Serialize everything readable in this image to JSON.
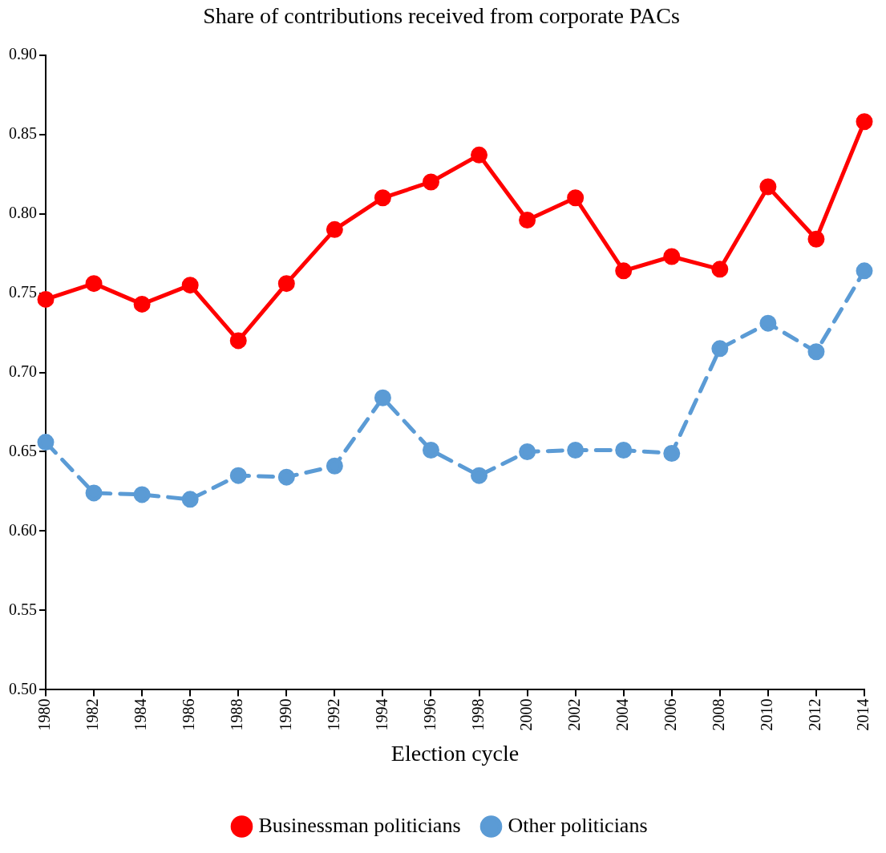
{
  "chart_data": {
    "type": "line",
    "title": "Share of contributions received from corporate PACs",
    "xlabel": "Election cycle",
    "categories": [
      "1980",
      "1982",
      "1984",
      "1986",
      "1988",
      "1990",
      "1992",
      "1994",
      "1996",
      "1998",
      "2000",
      "2002",
      "2004",
      "2006",
      "2008",
      "2010",
      "2012",
      "2014"
    ],
    "series": [
      {
        "name": "Businessman politicians",
        "color": "#ff0000",
        "line_style": "solid",
        "values": [
          0.746,
          0.756,
          0.743,
          0.755,
          0.72,
          0.756,
          0.79,
          0.81,
          0.82,
          0.837,
          0.796,
          0.81,
          0.764,
          0.773,
          0.765,
          0.817,
          0.784,
          0.858
        ]
      },
      {
        "name": "Other politicians",
        "color": "#5b9bd5",
        "line_style": "dashed",
        "values": [
          0.656,
          0.624,
          0.623,
          0.62,
          0.635,
          0.634,
          0.641,
          0.684,
          0.651,
          0.635,
          0.65,
          0.651,
          0.651,
          0.649,
          0.715,
          0.731,
          0.713,
          0.764
        ]
      }
    ],
    "ylim": [
      0.5,
      0.9
    ],
    "yticks": [
      {
        "value": 0.5,
        "label": "0.50"
      },
      {
        "value": 0.55,
        "label": "0.55"
      },
      {
        "value": 0.6,
        "label": "0.60"
      },
      {
        "value": 0.65,
        "label": "0.65"
      },
      {
        "value": 0.7,
        "label": "0.70"
      },
      {
        "value": 0.75,
        "label": "0.75"
      },
      {
        "value": 0.8,
        "label": "0.80"
      },
      {
        "value": 0.85,
        "label": "0.85"
      },
      {
        "value": 0.9,
        "label": "0.90"
      }
    ],
    "grid": false,
    "legend": "bottom",
    "marker": "circle"
  }
}
